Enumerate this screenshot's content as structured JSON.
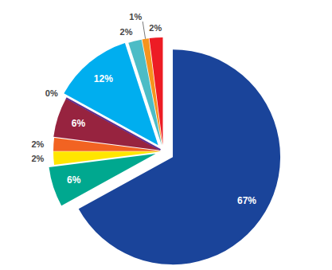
{
  "chart_data": {
    "type": "pie",
    "values": [
      67,
      6,
      2,
      2,
      6,
      0,
      12,
      2,
      1,
      2
    ],
    "value_labels": [
      "67%",
      "6%",
      "2%",
      "2%",
      "6%",
      "0%",
      "12%",
      "2%",
      "1%",
      "2%"
    ],
    "colors": [
      "#1a449a",
      "#00a88f",
      "#ffe600",
      "#f26322",
      "#97233f",
      "#5c2d91",
      "#00aeef",
      "#4dbcc6",
      "#f7941d",
      "#ed1c24"
    ],
    "data_labels": true
  }
}
